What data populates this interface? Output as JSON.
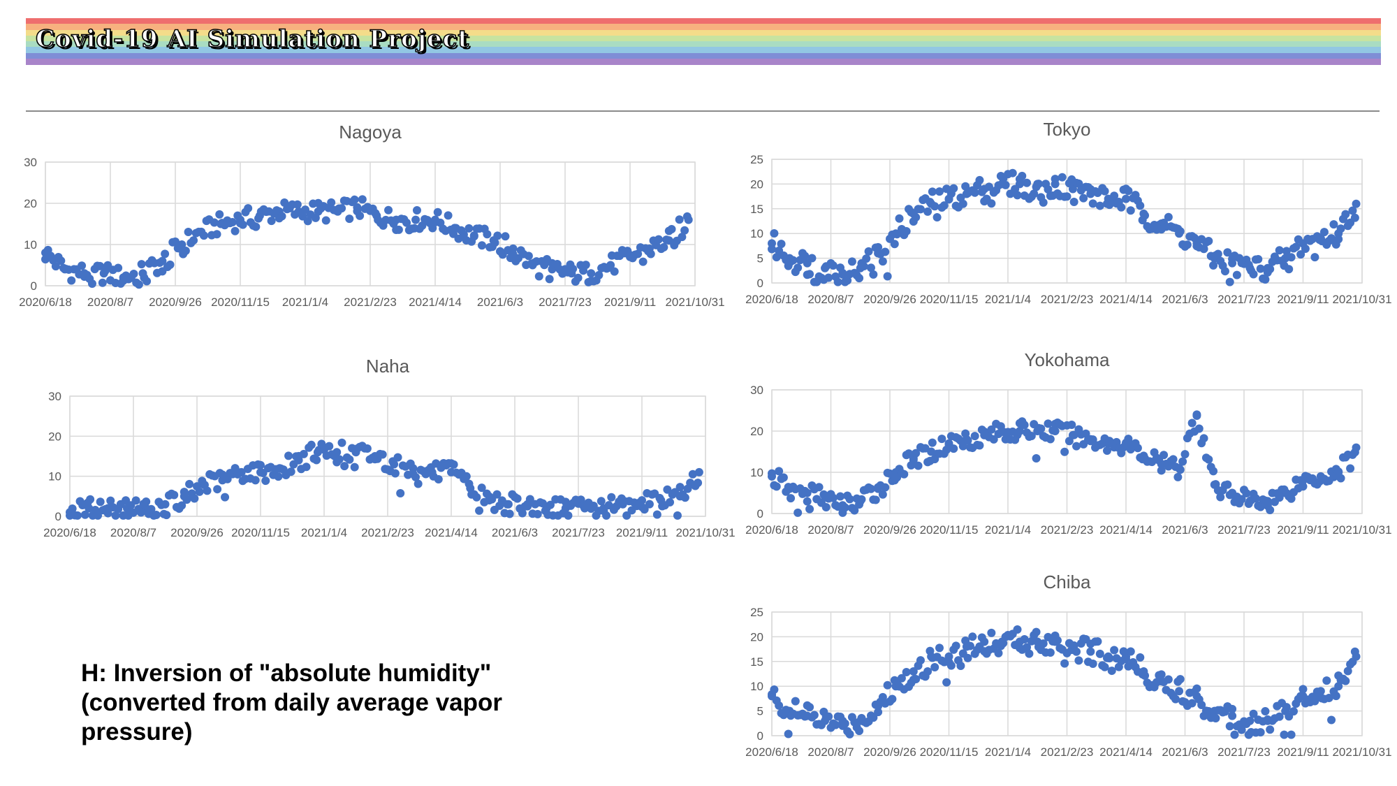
{
  "header": {
    "title": "Covid-19 AI Simulation Project",
    "stripe_colors": [
      "#ee6e6e",
      "#f7b17f",
      "#f4dc8a",
      "#c7e3a0",
      "#a9dcc2",
      "#92c7e3",
      "#7f8ed6",
      "#a884c9"
    ]
  },
  "caption": {
    "line1": "H: Inversion of \"absolute humidity\"",
    "line2": "(converted from daily average vapor",
    "line3": "pressure)"
  },
  "chart_data": [
    {
      "type": "scatter",
      "title": "Nagoya",
      "x_start": "2020/6/18",
      "x_end": "2021/10/31",
      "x_tick_labels": [
        "2020/6/18",
        "2020/8/7",
        "2020/9/26",
        "2020/11/15",
        "2021/1/4",
        "2021/2/23",
        "2021/4/14",
        "2021/6/3",
        "2021/7/23",
        "2021/9/11",
        "2021/10/31"
      ],
      "ylim": [
        0,
        30
      ],
      "y_ticks": [
        0,
        10,
        20,
        30
      ],
      "color": "#4472c4",
      "grid": true,
      "points": [
        [
          "2020/6/18",
          8
        ],
        [
          "2020/7/3",
          4
        ],
        [
          "2020/7/18",
          3
        ],
        [
          "2020/8/2",
          3
        ],
        [
          "2020/8/17",
          2
        ],
        [
          "2020/9/1",
          3
        ],
        [
          "2020/9/16",
          6
        ],
        [
          "2020/10/1",
          10
        ],
        [
          "2020/10/16",
          13
        ],
        [
          "2020/10/31",
          15
        ],
        [
          "2020/11/15",
          16
        ],
        [
          "2020/11/30",
          17
        ],
        [
          "2020/12/15",
          18
        ],
        [
          "2020/12/30",
          18
        ],
        [
          "2021/1/14",
          18
        ],
        [
          "2021/1/29",
          18
        ],
        [
          "2021/2/13",
          19
        ],
        [
          "2021/2/28",
          17
        ],
        [
          "2021/3/15",
          16
        ],
        [
          "2021/3/30",
          16
        ],
        [
          "2021/4/14",
          16
        ],
        [
          "2021/4/29",
          14
        ],
        [
          "2021/5/14",
          12
        ],
        [
          "2021/5/29",
          11
        ],
        [
          "2021/6/13",
          9
        ],
        [
          "2021/6/28",
          5
        ],
        [
          "2021/7/13",
          4
        ],
        [
          "2021/7/28",
          3
        ],
        [
          "2021/8/12",
          3
        ],
        [
          "2021/8/27",
          5
        ],
        [
          "2021/9/11",
          7
        ],
        [
          "2021/9/26",
          9
        ],
        [
          "2021/10/11",
          11
        ],
        [
          "2021/10/26",
          16
        ]
      ]
    },
    {
      "type": "scatter",
      "title": "Tokyo",
      "x_start": "2020/6/18",
      "x_end": "2021/10/31",
      "x_tick_labels": [
        "2020/6/18",
        "2020/8/7",
        "2020/9/26",
        "2020/11/15",
        "2021/1/4",
        "2021/2/23",
        "2021/4/14",
        "2021/6/3",
        "2021/7/23",
        "2021/9/11",
        "2021/10/31"
      ],
      "ylim": [
        0,
        25
      ],
      "y_ticks": [
        0,
        5,
        10,
        15,
        20,
        25
      ],
      "color": "#4472c4",
      "grid": true,
      "points": [
        [
          "2020/6/18",
          8
        ],
        [
          "2020/7/3",
          5
        ],
        [
          "2020/7/18",
          4
        ],
        [
          "2020/8/2",
          3
        ],
        [
          "2020/8/17",
          2
        ],
        [
          "2020/9/1",
          3
        ],
        [
          "2020/9/16",
          6
        ],
        [
          "2020/10/1",
          10
        ],
        [
          "2020/10/16",
          14
        ],
        [
          "2020/10/31",
          16
        ],
        [
          "2020/11/15",
          17
        ],
        [
          "2020/11/30",
          18
        ],
        [
          "2020/12/15",
          19
        ],
        [
          "2020/12/30",
          20
        ],
        [
          "2021/1/14",
          20
        ],
        [
          "2021/1/29",
          20
        ],
        [
          "2021/2/13",
          20
        ],
        [
          "2021/2/28",
          19
        ],
        [
          "2021/3/15",
          18
        ],
        [
          "2021/3/30",
          17
        ],
        [
          "2021/4/14",
          17
        ],
        [
          "2021/4/29",
          14
        ],
        [
          "2021/5/14",
          12
        ],
        [
          "2021/5/29",
          10
        ],
        [
          "2021/6/13",
          8
        ],
        [
          "2021/6/28",
          5
        ],
        [
          "2021/7/13",
          4
        ],
        [
          "2021/7/28",
          3
        ],
        [
          "2021/8/12",
          3
        ],
        [
          "2021/8/27",
          5
        ],
        [
          "2021/9/11",
          8
        ],
        [
          "2021/9/26",
          9
        ],
        [
          "2021/10/11",
          10
        ],
        [
          "2021/10/26",
          16
        ]
      ]
    },
    {
      "type": "scatter",
      "title": "Naha",
      "x_start": "2020/6/18",
      "x_end": "2021/10/31",
      "x_tick_labels": [
        "2020/6/18",
        "2020/8/7",
        "2020/9/26",
        "2020/11/15",
        "2021/1/4",
        "2021/2/23",
        "2021/4/14",
        "2021/6/3",
        "2021/7/23",
        "2021/9/11",
        "2021/10/31"
      ],
      "ylim": [
        0,
        30
      ],
      "y_ticks": [
        0,
        10,
        20,
        30
      ],
      "color": "#4472c4",
      "grid": true,
      "points": [
        [
          "2020/6/18",
          1
        ],
        [
          "2020/7/3",
          2
        ],
        [
          "2020/7/18",
          2
        ],
        [
          "2020/8/2",
          2
        ],
        [
          "2020/8/17",
          2
        ],
        [
          "2020/9/1",
          3
        ],
        [
          "2020/9/16",
          5
        ],
        [
          "2020/10/1",
          8
        ],
        [
          "2020/10/16",
          9
        ],
        [
          "2020/10/31",
          11
        ],
        [
          "2020/11/15",
          11
        ],
        [
          "2020/11/30",
          12
        ],
        [
          "2020/12/15",
          14
        ],
        [
          "2020/12/30",
          16
        ],
        [
          "2021/1/14",
          16
        ],
        [
          "2021/1/29",
          16
        ],
        [
          "2021/2/13",
          15
        ],
        [
          "2021/2/28",
          13
        ],
        [
          "2021/3/15",
          12
        ],
        [
          "2021/3/30",
          11
        ],
        [
          "2021/4/14",
          11
        ],
        [
          "2021/4/29",
          7
        ],
        [
          "2021/5/14",
          4
        ],
        [
          "2021/5/29",
          3
        ],
        [
          "2021/6/13",
          3
        ],
        [
          "2021/6/28",
          2
        ],
        [
          "2021/7/13",
          2
        ],
        [
          "2021/7/28",
          2
        ],
        [
          "2021/8/12",
          2
        ],
        [
          "2021/8/27",
          3
        ],
        [
          "2021/9/11",
          4
        ],
        [
          "2021/9/26",
          4
        ],
        [
          "2021/10/11",
          5
        ],
        [
          "2021/10/26",
          11
        ]
      ]
    },
    {
      "type": "scatter",
      "title": "Yokohama",
      "x_start": "2020/6/18",
      "x_end": "2021/10/31",
      "x_tick_labels": [
        "2020/6/18",
        "2020/8/7",
        "2020/9/26",
        "2020/11/15",
        "2021/1/4",
        "2021/2/23",
        "2021/4/14",
        "2021/6/3",
        "2021/7/23",
        "2021/9/11",
        "2021/10/31"
      ],
      "ylim": [
        0,
        30
      ],
      "y_ticks": [
        0,
        10,
        20,
        30
      ],
      "color": "#4472c4",
      "grid": true,
      "points": [
        [
          "2020/6/18",
          9
        ],
        [
          "2020/7/3",
          6
        ],
        [
          "2020/7/18",
          5
        ],
        [
          "2020/8/2",
          4
        ],
        [
          "2020/8/17",
          2
        ],
        [
          "2020/9/1",
          3
        ],
        [
          "2020/9/16",
          6
        ],
        [
          "2020/10/1",
          10
        ],
        [
          "2020/10/16",
          13
        ],
        [
          "2020/10/31",
          15
        ],
        [
          "2020/11/15",
          17
        ],
        [
          "2020/11/30",
          18
        ],
        [
          "2020/12/15",
          19
        ],
        [
          "2020/12/30",
          20
        ],
        [
          "2021/1/14",
          20
        ],
        [
          "2021/1/29",
          20
        ],
        [
          "2021/2/13",
          20
        ],
        [
          "2021/2/28",
          19
        ],
        [
          "2021/3/15",
          18
        ],
        [
          "2021/3/30",
          17
        ],
        [
          "2021/4/14",
          17
        ],
        [
          "2021/4/29",
          14
        ],
        [
          "2021/5/14",
          12
        ],
        [
          "2021/5/29",
          11
        ],
        [
          "2021/6/13",
          24
        ],
        [
          "2021/6/28",
          7
        ],
        [
          "2021/7/13",
          5
        ],
        [
          "2021/7/28",
          3
        ],
        [
          "2021/8/12",
          3
        ],
        [
          "2021/8/27",
          5
        ],
        [
          "2021/9/11",
          8
        ],
        [
          "2021/9/26",
          9
        ],
        [
          "2021/10/11",
          10
        ],
        [
          "2021/10/26",
          16
        ]
      ]
    },
    {
      "type": "scatter",
      "title": "Chiba",
      "x_start": "2020/6/18",
      "x_end": "2021/10/31",
      "x_tick_labels": [
        "2020/6/18",
        "2020/8/7",
        "2020/9/26",
        "2020/11/15",
        "2021/1/4",
        "2021/2/23",
        "2021/4/14",
        "2021/6/3",
        "2021/7/23",
        "2021/9/11",
        "2021/10/31"
      ],
      "ylim": [
        0,
        25
      ],
      "y_ticks": [
        0,
        5,
        10,
        15,
        20,
        25
      ],
      "color": "#4472c4",
      "grid": true,
      "points": [
        [
          "2020/6/18",
          8
        ],
        [
          "2020/7/3",
          5
        ],
        [
          "2020/7/18",
          4
        ],
        [
          "2020/8/2",
          3
        ],
        [
          "2020/8/17",
          2
        ],
        [
          "2020/9/1",
          3
        ],
        [
          "2020/9/16",
          6
        ],
        [
          "2020/10/1",
          10
        ],
        [
          "2020/10/16",
          13
        ],
        [
          "2020/10/31",
          16
        ],
        [
          "2020/11/15",
          16
        ],
        [
          "2020/11/30",
          18
        ],
        [
          "2020/12/15",
          19
        ],
        [
          "2020/12/30",
          19
        ],
        [
          "2021/1/14",
          19
        ],
        [
          "2021/1/29",
          19
        ],
        [
          "2021/2/13",
          19
        ],
        [
          "2021/2/28",
          18
        ],
        [
          "2021/3/15",
          17
        ],
        [
          "2021/3/30",
          16
        ],
        [
          "2021/4/14",
          16
        ],
        [
          "2021/4/29",
          13
        ],
        [
          "2021/5/14",
          11
        ],
        [
          "2021/5/29",
          9
        ],
        [
          "2021/6/13",
          8
        ],
        [
          "2021/6/28",
          5
        ],
        [
          "2021/7/13",
          4
        ],
        [
          "2021/7/28",
          3
        ],
        [
          "2021/8/12",
          3
        ],
        [
          "2021/8/27",
          5
        ],
        [
          "2021/9/11",
          8
        ],
        [
          "2021/9/26",
          9
        ],
        [
          "2021/10/11",
          10
        ],
        [
          "2021/10/26",
          16
        ]
      ]
    }
  ]
}
